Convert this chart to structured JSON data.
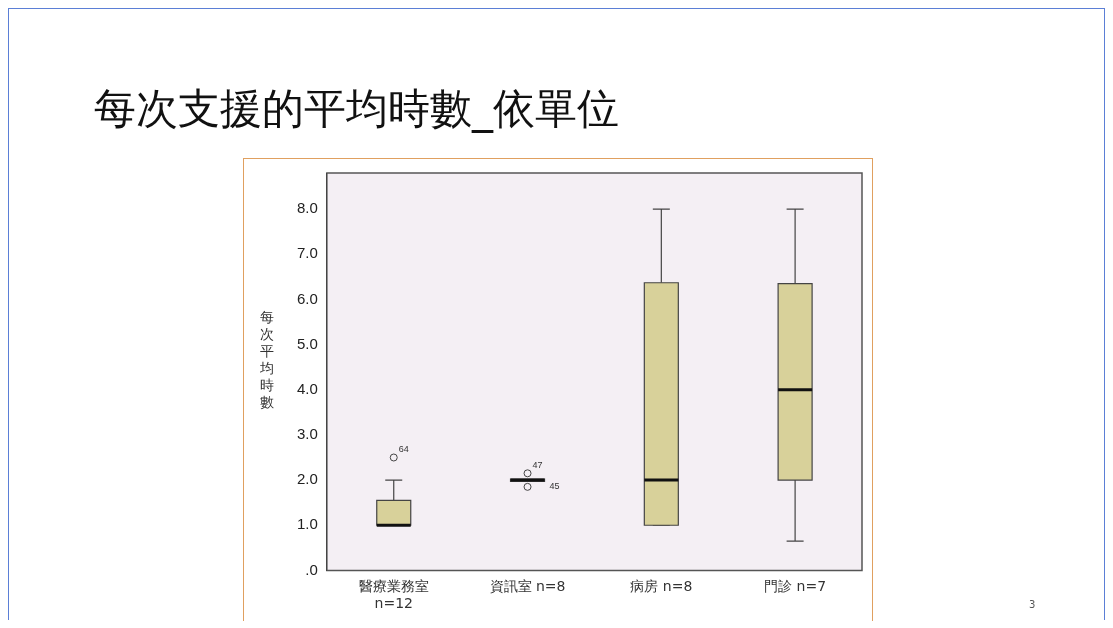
{
  "chart_data": {
    "type": "box",
    "title": "每次支援的平均時數_依單位",
    "ylabel": "每次平均時數",
    "categories": [
      "醫療業務室 n=12",
      "資訊室 n=8",
      "病房 n=8",
      "門診 n=7"
    ],
    "boxes": [
      {
        "low": 1,
        "q1": 1,
        "median": 1,
        "q3": 1.55,
        "high": 2,
        "outliers": [
          2.5
        ]
      },
      {
        "low": 2,
        "q1": 1.97,
        "median": 2,
        "q3": 2.02,
        "high": 2,
        "outliers": [
          2.15,
          1.85
        ]
      },
      {
        "low": 1,
        "q1": 1,
        "median": 2,
        "q3": 6.37,
        "high": 8
      },
      {
        "low": 0.65,
        "q1": 2,
        "median": 4,
        "q3": 6.35,
        "high": 8
      }
    ],
    "color": "#d8d19a",
    "ylim": [
      0,
      8.8
    ],
    "yticks": [
      {
        "value": 0,
        "label": ".0"
      },
      {
        "value": 1,
        "label": "1.0"
      },
      {
        "value": 2,
        "label": "2.0"
      },
      {
        "value": 3,
        "label": "3.0"
      },
      {
        "value": 4,
        "label": "4.0"
      },
      {
        "value": 5,
        "label": "5.0"
      },
      {
        "value": 6,
        "label": "6.0"
      },
      {
        "value": 7,
        "label": "7.0"
      },
      {
        "value": 8,
        "label": "8.0"
      }
    ],
    "grid": false,
    "legend": false,
    "marker": "circle",
    "annotations": [
      "64",
      "47",
      "45",
      "3"
    ]
  }
}
